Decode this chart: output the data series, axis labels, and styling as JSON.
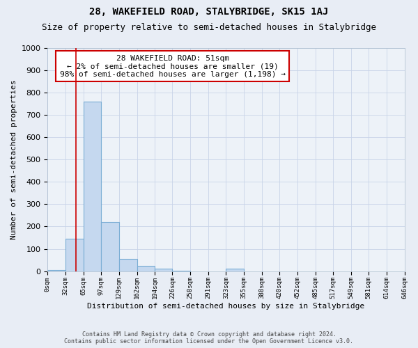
{
  "title": "28, WAKEFIELD ROAD, STALYBRIDGE, SK15 1AJ",
  "subtitle": "Size of property relative to semi-detached houses in Stalybridge",
  "xlabel": "Distribution of semi-detached houses by size in Stalybridge",
  "ylabel": "Number of semi-detached properties",
  "footer_line1": "Contains HM Land Registry data © Crown copyright and database right 2024.",
  "footer_line2": "Contains public sector information licensed under the Open Government Licence v3.0.",
  "bin_edges": [
    0,
    32,
    65,
    97,
    129,
    162,
    194,
    226,
    258,
    291,
    323,
    355,
    388,
    420,
    452,
    485,
    517,
    549,
    581,
    614,
    646
  ],
  "bar_heights": [
    5,
    145,
    760,
    220,
    55,
    25,
    12,
    3,
    0,
    0,
    10,
    0,
    0,
    0,
    0,
    0,
    0,
    0,
    0,
    0
  ],
  "bar_color": "#c5d8ef",
  "bar_edgecolor": "#7aadd4",
  "vline_x": 51,
  "annotation_text_line1": "28 WAKEFIELD ROAD: 51sqm",
  "annotation_text_line2": "← 2% of semi-detached houses are smaller (19)",
  "annotation_text_line3": "98% of semi-detached houses are larger (1,198) →",
  "annotation_box_color": "#ffffff",
  "annotation_box_edgecolor": "#cc0000",
  "ylim": [
    0,
    1000
  ],
  "yticks": [
    0,
    100,
    200,
    300,
    400,
    500,
    600,
    700,
    800,
    900,
    1000
  ],
  "grid_color": "#c8d4e8",
  "figure_background_color": "#e8edf5",
  "plot_background_color": "#edf2f8",
  "title_fontsize": 10,
  "subtitle_fontsize": 9
}
